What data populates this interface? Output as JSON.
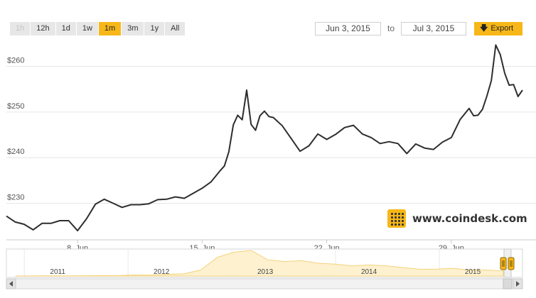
{
  "range_buttons": [
    {
      "label": "1h",
      "state": "disabled"
    },
    {
      "label": "12h",
      "state": "normal"
    },
    {
      "label": "1d",
      "state": "normal"
    },
    {
      "label": "1w",
      "state": "normal"
    },
    {
      "label": "1m",
      "state": "active"
    },
    {
      "label": "3m",
      "state": "normal"
    },
    {
      "label": "1y",
      "state": "normal"
    },
    {
      "label": "All",
      "state": "normal"
    }
  ],
  "date_range": {
    "from": "Jun 3, 2015",
    "to_label": "to",
    "to": "Jul 3, 2015"
  },
  "export_label": "Export",
  "brand": "www.coindesk.com",
  "colors": {
    "accent": "#f7b718",
    "line": "#2e2e2e",
    "grid": "#e6e6e6",
    "navigator_area": "#fdf1cf"
  },
  "chart_data": {
    "type": "line",
    "title": "",
    "xlabel": "",
    "ylabel": "",
    "y_ticks": [
      "$230",
      "$240",
      "$250",
      "$260"
    ],
    "y_tick_values": [
      230,
      240,
      250,
      260
    ],
    "ylim": [
      222,
      266
    ],
    "x_ticks": [
      "8. Jun",
      "15. Jun",
      "22. Jun",
      "29. Jun"
    ],
    "x_tick_dates": [
      "2015-06-08",
      "2015-06-15",
      "2015-06-22",
      "2015-06-29"
    ],
    "xlim": [
      "2015-06-04",
      "2015-07-03"
    ],
    "grid": true,
    "legend": "none",
    "series": [
      {
        "x": [
          "2015-06-04T00:00",
          "2015-06-04T12:00",
          "2015-06-05T00:00",
          "2015-06-05T12:00",
          "2015-06-06T00:00",
          "2015-06-06T12:00",
          "2015-06-07T00:00",
          "2015-06-07T12:00",
          "2015-06-08T00:00",
          "2015-06-08T12:00",
          "2015-06-09T00:00",
          "2015-06-09T12:00",
          "2015-06-10T00:00",
          "2015-06-10T12:00",
          "2015-06-11T00:00",
          "2015-06-11T12:00",
          "2015-06-12T00:00",
          "2015-06-12T12:00",
          "2015-06-13T00:00",
          "2015-06-13T12:00",
          "2015-06-14T00:00",
          "2015-06-14T12:00",
          "2015-06-15T00:00",
          "2015-06-15T12:00",
          "2015-06-16T00:00",
          "2015-06-16T06:00",
          "2015-06-16T12:00",
          "2015-06-16T18:00",
          "2015-06-17T00:00",
          "2015-06-17T06:00",
          "2015-06-17T12:00",
          "2015-06-17T18:00",
          "2015-06-18T00:00",
          "2015-06-18T06:00",
          "2015-06-18T12:00",
          "2015-06-18T18:00",
          "2015-06-19T00:00",
          "2015-06-19T12:00",
          "2015-06-20T00:00",
          "2015-06-20T12:00",
          "2015-06-21T00:00",
          "2015-06-21T12:00",
          "2015-06-22T00:00",
          "2015-06-22T12:00",
          "2015-06-23T00:00",
          "2015-06-23T12:00",
          "2015-06-24T00:00",
          "2015-06-24T12:00",
          "2015-06-25T00:00",
          "2015-06-25T12:00",
          "2015-06-26T00:00",
          "2015-06-26T12:00",
          "2015-06-27T00:00",
          "2015-06-27T12:00",
          "2015-06-28T00:00",
          "2015-06-28T12:00",
          "2015-06-29T00:00",
          "2015-06-29T12:00",
          "2015-06-30T00:00",
          "2015-06-30T06:00",
          "2015-06-30T12:00",
          "2015-06-30T18:00",
          "2015-07-01T00:00",
          "2015-07-01T06:00",
          "2015-07-01T12:00",
          "2015-07-01T18:00",
          "2015-07-02T00:00",
          "2015-07-02T06:00",
          "2015-07-02T12:00",
          "2015-07-02T18:00",
          "2015-07-03T00:00"
        ],
        "values": [
          227.2,
          225.9,
          225.4,
          224.2,
          225.6,
          225.6,
          226.2,
          226.2,
          224.0,
          226.6,
          229.8,
          230.9,
          230.0,
          229.1,
          229.7,
          229.7,
          229.9,
          230.8,
          230.9,
          231.4,
          231.1,
          232.2,
          233.3,
          234.7,
          237.1,
          238.2,
          241.3,
          247.2,
          249.3,
          248.3,
          254.8,
          247.3,
          246.0,
          249.2,
          250.2,
          249.0,
          248.8,
          247.0,
          244.2,
          241.4,
          242.6,
          245.2,
          244.0,
          245.1,
          246.6,
          247.1,
          245.2,
          244.4,
          243.1,
          243.5,
          243.1,
          240.9,
          243.0,
          242.1,
          241.8,
          243.4,
          244.4,
          248.4,
          250.8,
          249.2,
          249.3,
          250.6,
          253.5,
          256.9,
          264.7,
          262.6,
          258.5,
          255.9,
          256.0,
          253.4,
          254.8
        ]
      }
    ]
  },
  "navigator": {
    "year_labels": [
      "2011",
      "2012",
      "2013",
      "2014",
      "2015"
    ],
    "series_values": [
      0.1,
      0.2,
      0.3,
      0.2,
      0.3,
      0.5,
      0.4,
      1.2,
      1.0,
      2.0,
      2.6,
      7.0,
      22.0,
      28.0,
      30.0,
      19.0,
      17.0,
      18.0,
      15.0,
      14.0,
      12.0,
      13.0,
      12.0,
      10.0,
      8.0,
      8.0,
      9.0,
      7.0,
      7.0,
      6.0
    ]
  }
}
